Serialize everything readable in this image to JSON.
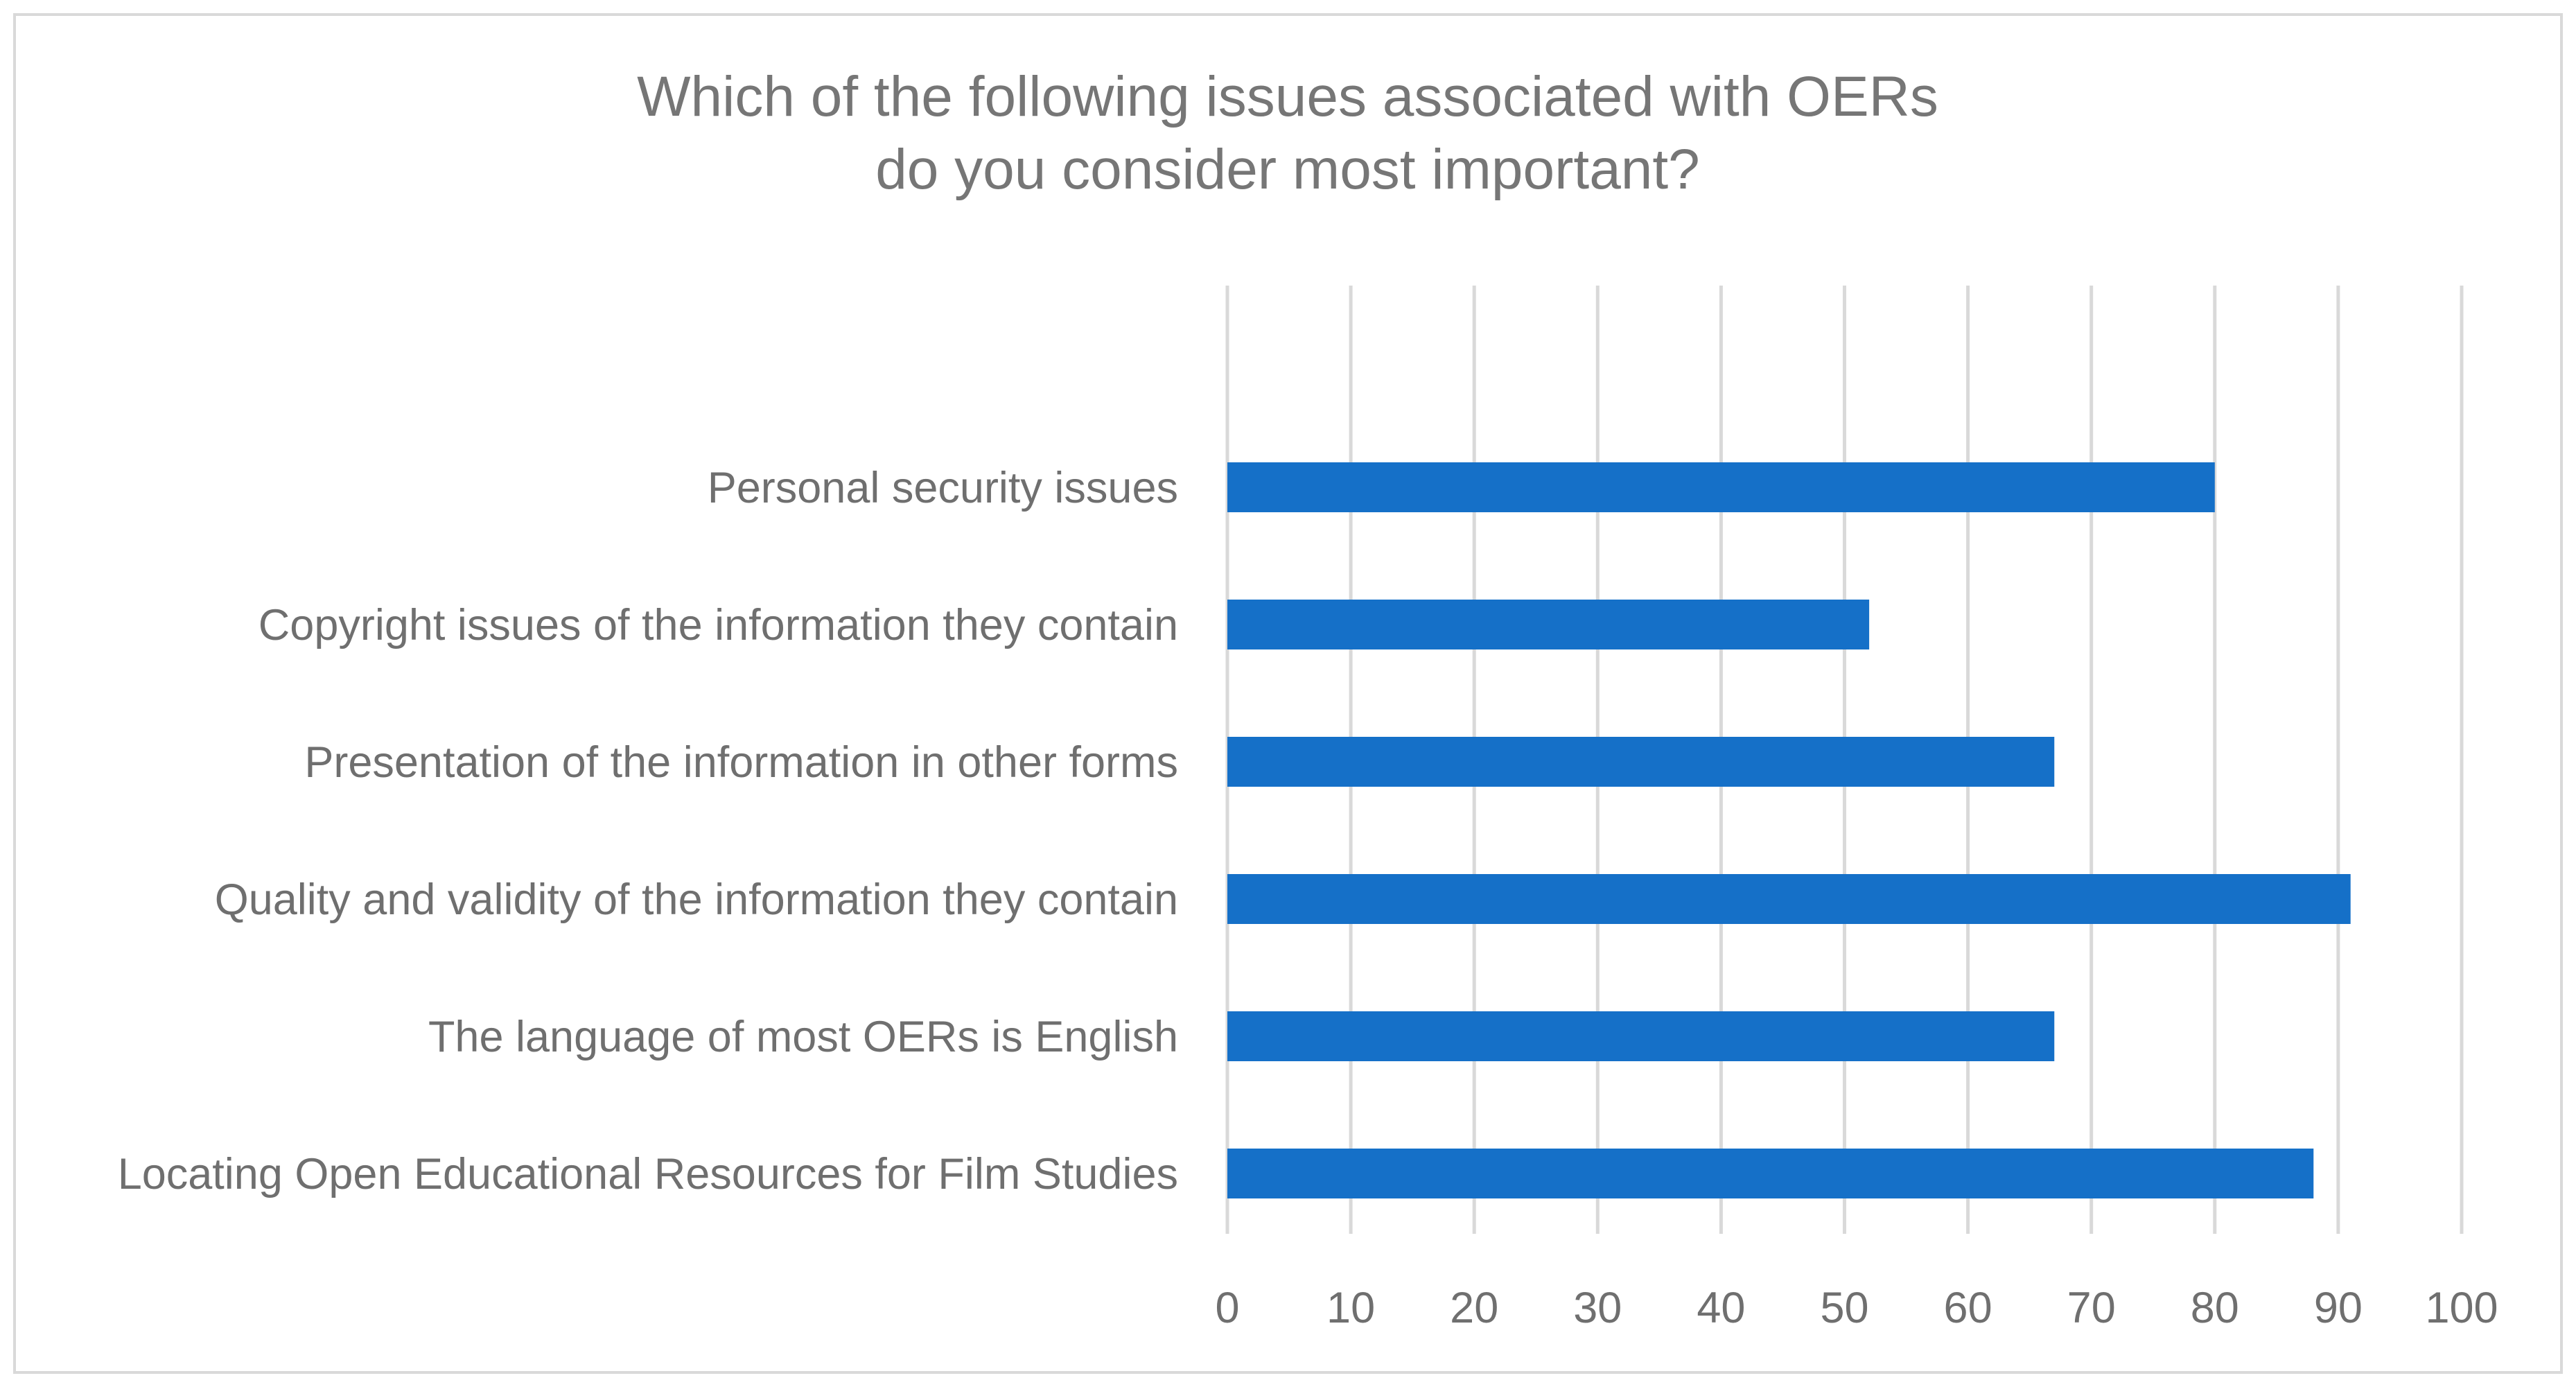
{
  "chart_data": {
    "type": "bar",
    "orientation": "horizontal",
    "title": [
      "Which of the following issues associated with OERs",
      "do you consider most important?"
    ],
    "categories": [
      "Personal security issues",
      "Copyright issues of the information they contain",
      "Presentation of the information in other forms",
      "Quality and validity of the information they contain",
      "The language of most OERs is English",
      "Locating Open Educational Resources for Film Studies"
    ],
    "values": [
      80,
      52,
      67,
      91,
      67,
      88
    ],
    "xlim": [
      0,
      100
    ],
    "xticks": [
      0,
      10,
      20,
      30,
      40,
      50,
      60,
      70,
      80,
      90,
      100
    ],
    "xlabel": "",
    "ylabel": "",
    "grid": true,
    "legend": "none",
    "bar_color": "#1570c8",
    "grid_color": "#d9d9d9",
    "text_color": "#6f6f6f",
    "border_color": "#d9d9d9"
  }
}
